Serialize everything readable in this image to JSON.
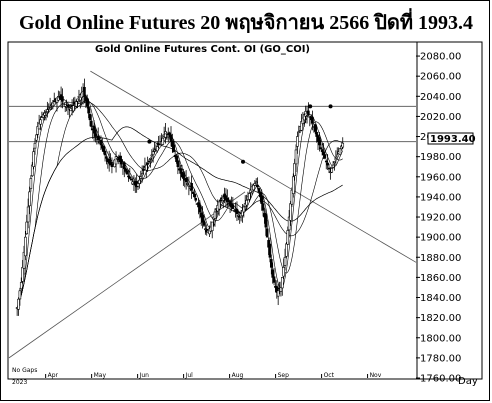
{
  "headline": "Gold Online Futures 20 พฤษจิกายน 2566 ปิดที่ 1993.4",
  "chart_data": {
    "type": "candlestick",
    "title": "Gold Online Futures Cont. OI (GO_COI)",
    "xlabel": "Day",
    "ylabel": "",
    "ylim": [
      1760,
      2090
    ],
    "y_ticks": [
      1760,
      1780,
      1800,
      1820,
      1840,
      1860,
      1880,
      1900,
      1920,
      1940,
      1960,
      1980,
      2000,
      2020,
      2040,
      2060,
      2080
    ],
    "y_tick_labels": [
      "1760.00",
      "1780.00",
      "1800.00",
      "1820.00",
      "1840.00",
      "1860.00",
      "1880.00",
      "1900.00",
      "1920.00",
      "1940.00",
      "1960.00",
      "1980.00",
      "2000.00",
      "2020.00",
      "2040.00",
      "2060.00",
      "2080.00"
    ],
    "months": [
      "Apr",
      "May",
      "Jun",
      "Jul",
      "Aug",
      "Sep",
      "Oct",
      "Nov"
    ],
    "year_label": "2023",
    "corner_note": "No Gaps",
    "last_price_label": "1993.40",
    "horizontal_levels": [
      2030,
      1995
    ],
    "trendlines": [
      {
        "from": [
          0.2,
          2065
        ],
        "to": [
          1.0,
          1875
        ]
      },
      {
        "from": [
          0.0,
          1780
        ],
        "to": [
          0.58,
          1945
        ]
      }
    ],
    "series": [
      {
        "name": "",
        "values": [
          1830,
          1855,
          1900,
          1945,
          1985,
          2010,
          2020,
          2025,
          2030,
          2035,
          2040,
          2035,
          2030,
          2028,
          2032,
          2040,
          2045,
          2030,
          2010,
          2000,
          1995,
          1985,
          1975,
          1970,
          1980,
          1975,
          1968,
          1960,
          1955,
          1950,
          1960,
          1970,
          1975,
          1985,
          1990,
          1995,
          2005,
          2000,
          1985,
          1970,
          1960,
          1955,
          1950,
          1940,
          1930,
          1915,
          1905,
          1910,
          1925,
          1935,
          1940,
          1935,
          1930,
          1925,
          1920,
          1930,
          1940,
          1950,
          1955,
          1940,
          1920,
          1890,
          1860,
          1845,
          1850,
          1880,
          1920,
          1960,
          2000,
          2015,
          2025,
          2020,
          2010,
          1995,
          1985,
          1975,
          1965,
          1975,
          1985,
          1993.4
        ]
      }
    ],
    "markers": [
      {
        "x": 0.345,
        "y": 1995
      },
      {
        "x": 0.575,
        "y": 1975
      },
      {
        "x": 0.74,
        "y": 2030
      },
      {
        "x": 0.79,
        "y": 2030
      }
    ]
  }
}
